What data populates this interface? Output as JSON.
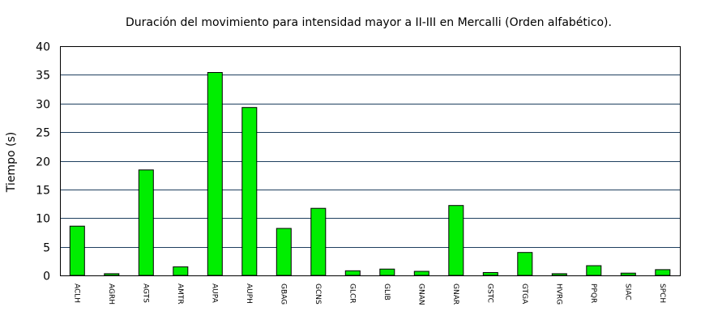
{
  "chart_data": {
    "type": "bar",
    "title": "Duración del movimiento para intensidad mayor a II-III en Mercalli (Orden alfabético).",
    "xlabel": "",
    "ylabel": "Tiempo (s)",
    "ylim": [
      0,
      40
    ],
    "yticks": [
      0,
      5,
      10,
      15,
      20,
      25,
      30,
      35,
      40
    ],
    "grid": true,
    "categories": [
      "ACLH",
      "AGRH",
      "AGTS",
      "AMTR",
      "AUPA",
      "AUPH",
      "GBAG",
      "GCNS",
      "GLCR",
      "GLIB",
      "GNAN",
      "GNAR",
      "GSTC",
      "GTGA",
      "HVRG",
      "PPQR",
      "SIAC",
      "SPCH"
    ],
    "values": [
      8.6,
      0.3,
      18.4,
      1.5,
      35.4,
      29.3,
      8.2,
      11.7,
      0.8,
      1.1,
      0.7,
      12.2,
      0.5,
      4.0,
      0.3,
      1.7,
      0.4,
      1.0
    ],
    "colors": {
      "bar": "#00ee00",
      "bar_stroke": "#000000",
      "grid": "#1f3f5f",
      "axis": "#000000"
    }
  }
}
